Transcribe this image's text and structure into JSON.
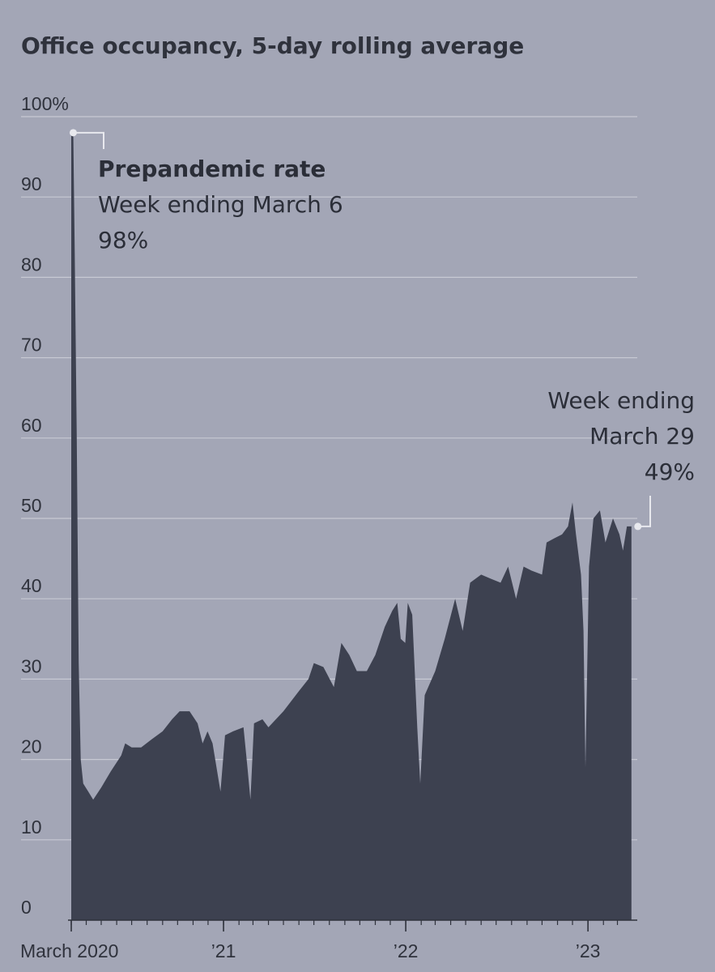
{
  "chart_data": {
    "type": "area",
    "title": "Office occupancy, 5-day rolling average",
    "xlabel": "",
    "ylabel": "",
    "ylim": [
      0,
      100
    ],
    "y_ticks": [
      {
        "value": 0,
        "label": "0"
      },
      {
        "value": 10,
        "label": "10"
      },
      {
        "value": 20,
        "label": "20"
      },
      {
        "value": 30,
        "label": "30"
      },
      {
        "value": 40,
        "label": "40"
      },
      {
        "value": 50,
        "label": "50"
      },
      {
        "value": 60,
        "label": "60"
      },
      {
        "value": 70,
        "label": "70"
      },
      {
        "value": 80,
        "label": "80"
      },
      {
        "value": 90,
        "label": "90"
      },
      {
        "value": 100,
        "label": "100%"
      }
    ],
    "x_range": [
      "2020-03-02",
      "2023-03-31"
    ],
    "x_ticks": [
      {
        "date": "2020-03-01",
        "label": "March 2020"
      },
      {
        "date": "2021-01-01",
        "label": "’21"
      },
      {
        "date": "2022-01-01",
        "label": "’22"
      },
      {
        "date": "2023-01-01",
        "label": "’23"
      }
    ],
    "month_ticks": [
      "2020-03-01",
      "2020-04-01",
      "2020-05-01",
      "2020-06-01",
      "2020-07-01",
      "2020-08-01",
      "2020-09-01",
      "2020-10-01",
      "2020-11-01",
      "2020-12-01",
      "2021-01-01",
      "2021-02-01",
      "2021-03-01",
      "2021-04-01",
      "2021-05-01",
      "2021-06-01",
      "2021-07-01",
      "2021-08-01",
      "2021-09-01",
      "2021-10-01",
      "2021-11-01",
      "2021-12-01",
      "2022-01-01",
      "2022-02-01",
      "2022-03-01",
      "2022-04-01",
      "2022-05-01",
      "2022-06-01",
      "2022-07-01",
      "2022-08-01",
      "2022-09-01",
      "2022-10-01",
      "2022-11-01",
      "2022-12-01",
      "2023-01-01",
      "2023-02-01",
      "2023-03-01"
    ],
    "grid": true,
    "colors": {
      "background": "#a3a6b6",
      "area": "#3d4150",
      "grid": "#c7c9d3",
      "text": "#2f323c"
    },
    "series": [
      {
        "points": [
          [
            "2020-03-02",
            98
          ],
          [
            "2020-03-06",
            98
          ],
          [
            "2020-03-09",
            83
          ],
          [
            "2020-03-13",
            60
          ],
          [
            "2020-03-17",
            32
          ],
          [
            "2020-03-21",
            20
          ],
          [
            "2020-03-26",
            17
          ],
          [
            "2020-04-05",
            16
          ],
          [
            "2020-04-15",
            15
          ],
          [
            "2020-05-01",
            16.5
          ],
          [
            "2020-05-20",
            18.5
          ],
          [
            "2020-06-10",
            20.5
          ],
          [
            "2020-06-18",
            22
          ],
          [
            "2020-07-01",
            21.5
          ],
          [
            "2020-07-20",
            21.5
          ],
          [
            "2020-08-10",
            22.5
          ],
          [
            "2020-09-01",
            23.5
          ],
          [
            "2020-09-20",
            25
          ],
          [
            "2020-10-05",
            26
          ],
          [
            "2020-10-25",
            26
          ],
          [
            "2020-11-10",
            24.5
          ],
          [
            "2020-11-20",
            22
          ],
          [
            "2020-11-30",
            23.5
          ],
          [
            "2020-12-10",
            22
          ],
          [
            "2020-12-18",
            19
          ],
          [
            "2020-12-26",
            16
          ],
          [
            "2021-01-04",
            23
          ],
          [
            "2021-01-20",
            23.5
          ],
          [
            "2021-02-10",
            24
          ],
          [
            "2021-02-18",
            19
          ],
          [
            "2021-02-24",
            15
          ],
          [
            "2021-03-03",
            24.5
          ],
          [
            "2021-03-20",
            25
          ],
          [
            "2021-04-01",
            24
          ],
          [
            "2021-05-01",
            26
          ],
          [
            "2021-06-01",
            28.5
          ],
          [
            "2021-06-20",
            30
          ],
          [
            "2021-07-01",
            32
          ],
          [
            "2021-07-20",
            31.5
          ],
          [
            "2021-08-10",
            29
          ],
          [
            "2021-08-25",
            34.5
          ],
          [
            "2021-09-10",
            33
          ],
          [
            "2021-09-25",
            31
          ],
          [
            "2021-10-15",
            31
          ],
          [
            "2021-11-01",
            33
          ],
          [
            "2021-11-20",
            36.5
          ],
          [
            "2021-12-05",
            38.5
          ],
          [
            "2021-12-15",
            39.5
          ],
          [
            "2021-12-22",
            35
          ],
          [
            "2021-12-31",
            34.5
          ],
          [
            "2022-01-05",
            39.5
          ],
          [
            "2022-01-14",
            38
          ],
          [
            "2022-01-24",
            24
          ],
          [
            "2022-01-30",
            17
          ],
          [
            "2022-02-08",
            28
          ],
          [
            "2022-03-01",
            31
          ],
          [
            "2022-03-20",
            35
          ],
          [
            "2022-04-10",
            40
          ],
          [
            "2022-04-25",
            36
          ],
          [
            "2022-05-10",
            42
          ],
          [
            "2022-06-01",
            43
          ],
          [
            "2022-06-20",
            42.5
          ],
          [
            "2022-07-10",
            42
          ],
          [
            "2022-07-25",
            44
          ],
          [
            "2022-08-10",
            40
          ],
          [
            "2022-08-25",
            44
          ],
          [
            "2022-09-10",
            43.5
          ],
          [
            "2022-10-01",
            43
          ],
          [
            "2022-10-10",
            47
          ],
          [
            "2022-10-25",
            47.5
          ],
          [
            "2022-11-10",
            48
          ],
          [
            "2022-11-22",
            49
          ],
          [
            "2022-12-01",
            52
          ],
          [
            "2022-12-08",
            48
          ],
          [
            "2022-12-18",
            43
          ],
          [
            "2022-12-23",
            36
          ],
          [
            "2022-12-27",
            19
          ],
          [
            "2023-01-03",
            44
          ],
          [
            "2023-01-12",
            50
          ],
          [
            "2023-01-25",
            51
          ],
          [
            "2023-02-05",
            47
          ],
          [
            "2023-02-20",
            50
          ],
          [
            "2023-03-05",
            48
          ],
          [
            "2023-03-12",
            46
          ],
          [
            "2023-03-20",
            49
          ],
          [
            "2023-03-29",
            49
          ]
        ]
      }
    ],
    "annotations": [
      {
        "date": "2020-03-06",
        "value": 98,
        "title": "Prepandemic rate",
        "lines": [
          "Week ending March 6",
          "98%"
        ]
      },
      {
        "date": "2023-03-29",
        "value": 49,
        "lines": [
          "Week ending",
          "March 29",
          "49%"
        ]
      }
    ]
  }
}
